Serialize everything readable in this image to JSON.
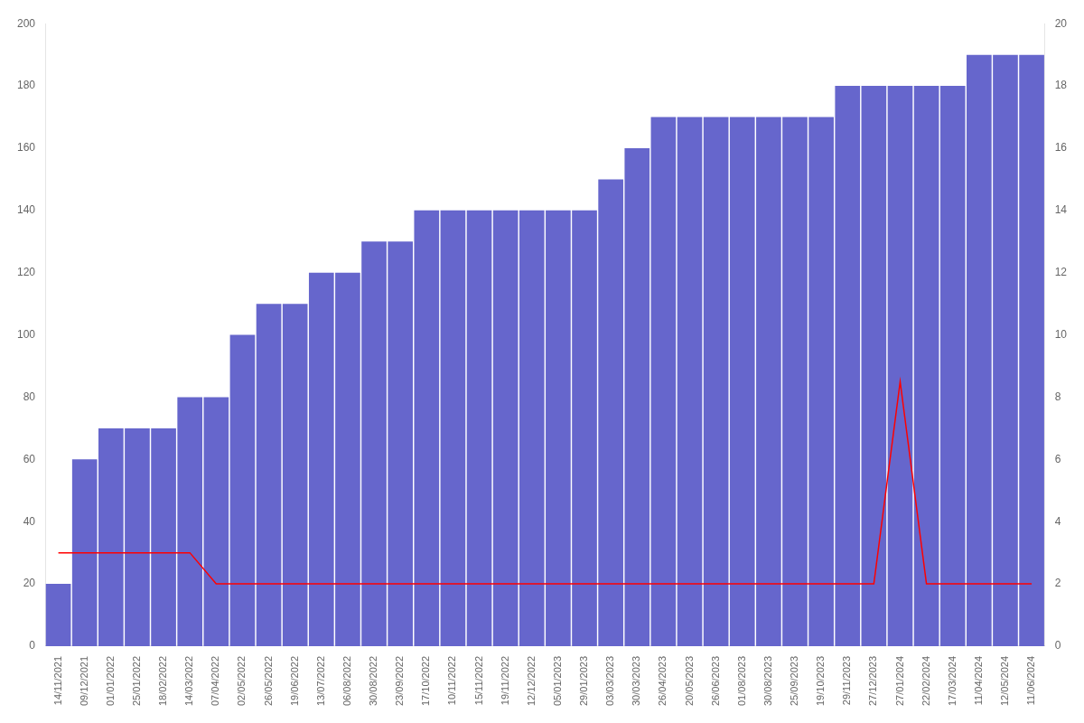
{
  "chart_data": {
    "type": "bar",
    "categories": [
      "14/11/2021",
      "09/12/2021",
      "01/01/2022",
      "25/01/2022",
      "18/02/2022",
      "14/03/2022",
      "07/04/2022",
      "02/05/2022",
      "26/05/2022",
      "19/06/2022",
      "13/07/2022",
      "06/08/2022",
      "30/08/2022",
      "23/09/2022",
      "17/10/2022",
      "10/11/2022",
      "15/11/2022",
      "19/11/2022",
      "12/12/2022",
      "05/01/2023",
      "29/01/2023",
      "03/03/2023",
      "30/03/2023",
      "26/04/2023",
      "20/05/2023",
      "26/06/2023",
      "01/08/2023",
      "30/08/2023",
      "25/09/2023",
      "19/10/2023",
      "29/11/2023",
      "27/12/2023",
      "27/01/2024",
      "22/02/2024",
      "17/03/2024",
      "11/04/2024",
      "12/05/2024",
      "11/06/2024"
    ],
    "series": [
      {
        "type": "bar",
        "color": "#6666cc",
        "values": [
          20,
          60,
          70,
          70,
          70,
          80,
          80,
          100,
          110,
          110,
          120,
          120,
          130,
          130,
          140,
          140,
          140,
          140,
          140,
          140,
          140,
          150,
          160,
          170,
          170,
          170,
          170,
          170,
          170,
          170,
          180,
          180,
          180,
          180,
          180,
          190,
          190,
          190
        ]
      },
      {
        "type": "line",
        "color": "#ff0000",
        "marker": "none",
        "values": [
          30,
          30,
          30,
          30,
          30,
          30,
          20,
          20,
          20,
          20,
          20,
          20,
          20,
          20,
          20,
          20,
          20,
          20,
          20,
          20,
          20,
          20,
          20,
          20,
          20,
          20,
          20,
          20,
          20,
          20,
          20,
          20,
          85,
          20,
          20,
          20,
          20,
          20
        ]
      }
    ],
    "ylim": [
      0,
      200
    ],
    "yticks": [
      0,
      20,
      40,
      60,
      80,
      100,
      120,
      140,
      160,
      180,
      200
    ],
    "y2lim": [
      0,
      20
    ],
    "y2ticks": [
      0,
      2,
      4,
      6,
      8,
      10,
      12,
      14,
      16,
      18,
      20
    ],
    "grid": false
  }
}
